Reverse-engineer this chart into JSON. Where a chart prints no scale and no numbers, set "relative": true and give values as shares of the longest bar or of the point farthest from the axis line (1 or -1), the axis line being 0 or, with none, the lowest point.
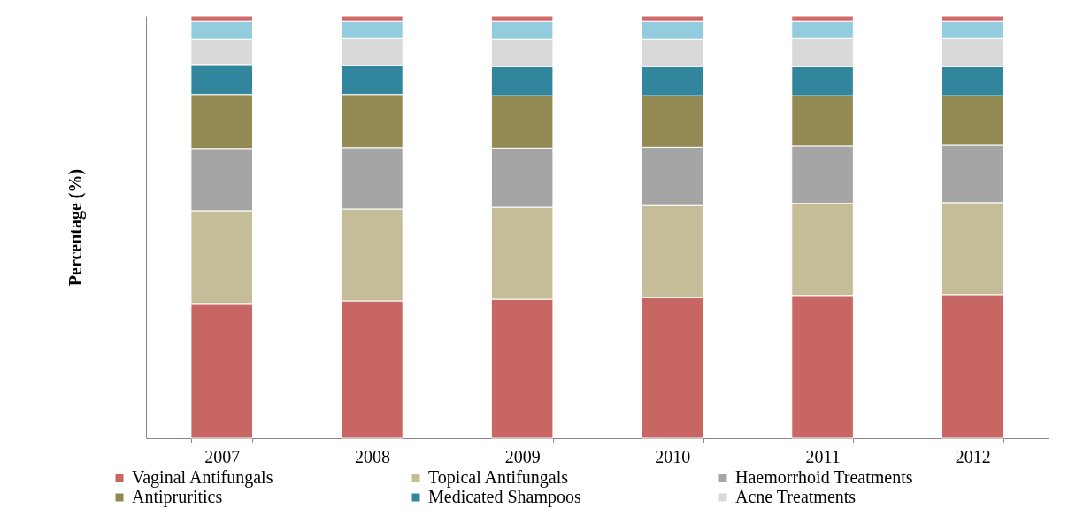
{
  "chart_data": {
    "type": "bar",
    "stacked": true,
    "relative": true,
    "ylabel": "Percentage  (%)",
    "categories": [
      "2007",
      "2008",
      "2009",
      "2010",
      "2011",
      "2012"
    ],
    "legend": "bottom",
    "series": [
      {
        "name": "Vaginal Antifungals",
        "color": "#c86663",
        "values": [
          0.319,
          0.325,
          0.329,
          0.333,
          0.338,
          0.34
        ]
      },
      {
        "name": "Topical Antifungals",
        "color": "#c4bd97",
        "values": [
          0.22,
          0.218,
          0.218,
          0.218,
          0.218,
          0.218
        ]
      },
      {
        "name": "Haemorrhoid Treatments",
        "color": "#a5a5a5",
        "values": [
          0.147,
          0.145,
          0.14,
          0.138,
          0.136,
          0.136
        ]
      },
      {
        "name": "Antipruritics",
        "color": "#948a54",
        "values": [
          0.128,
          0.126,
          0.124,
          0.122,
          0.119,
          0.117
        ]
      },
      {
        "name": "Medicated Shampoos",
        "color": "#31859c",
        "values": [
          0.071,
          0.069,
          0.069,
          0.069,
          0.069,
          0.069
        ]
      },
      {
        "name": "Acne Treatments",
        "color": "#d9d9d9",
        "values": [
          0.06,
          0.064,
          0.065,
          0.065,
          0.067,
          0.067
        ]
      },
      {
        "color": "#93cddd",
        "values": [
          0.042,
          0.04,
          0.042,
          0.042,
          0.04,
          0.04
        ]
      },
      {
        "color": "#d16b6b",
        "values": [
          0.013,
          0.013,
          0.013,
          0.013,
          0.013,
          0.013
        ]
      }
    ]
  }
}
